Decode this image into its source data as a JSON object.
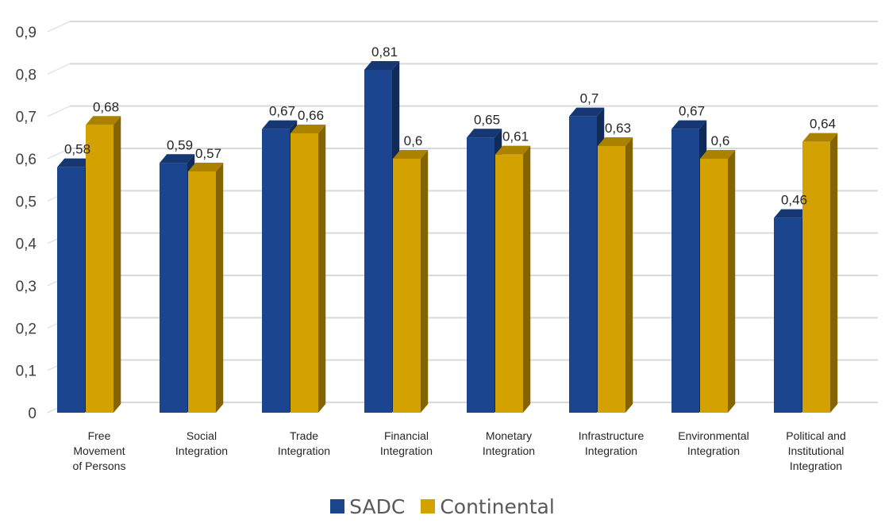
{
  "chart_data": {
    "type": "bar",
    "categories": [
      "Free Movement of Persons",
      "Social Integration",
      "Trade Integration",
      "Financial Integration",
      "Monetary Integration",
      "Infrastructure Integration",
      "Environmental Integration",
      "Political and Institutional Integration"
    ],
    "category_lines": [
      [
        "Free",
        "Movement",
        "of Persons"
      ],
      [
        "Social",
        "Integration"
      ],
      [
        "Trade",
        "Integration"
      ],
      [
        "Financial",
        "Integration"
      ],
      [
        "Monetary",
        "Integration"
      ],
      [
        "Infrastructure",
        "Integration"
      ],
      [
        "Environmental",
        "Integration"
      ],
      [
        "Political and",
        "Institutional",
        "Integration"
      ]
    ],
    "series": [
      {
        "name": "SADC",
        "color": "#1b458f",
        "values": [
          0.58,
          0.59,
          0.67,
          0.81,
          0.65,
          0.7,
          0.67,
          0.46
        ],
        "labels": [
          "0,58",
          "0,59",
          "0,67",
          "0,81",
          "0,65",
          "0,7",
          "0,67",
          "0,46"
        ]
      },
      {
        "name": "Continental",
        "color": "#d4a200",
        "values": [
          0.68,
          0.57,
          0.66,
          0.6,
          0.61,
          0.63,
          0.6,
          0.64
        ],
        "labels": [
          "0,68",
          "0,57",
          "0,66",
          "0,6",
          "0,61",
          "0,63",
          "0,6",
          "0,64"
        ]
      }
    ],
    "ylim": [
      0,
      0.9
    ],
    "yticks": [
      0,
      0.1,
      0.2,
      0.3,
      0.4,
      0.5,
      0.6,
      0.7,
      0.8,
      0.9
    ],
    "ytick_labels": [
      "0",
      "0,1",
      "0,2",
      "0,3",
      "0,4",
      "0,5",
      "0,6",
      "0,7",
      "0,8",
      "0,9"
    ],
    "grid": true,
    "three_d": true,
    "legend_position": "bottom-center",
    "title": "",
    "xlabel": "",
    "ylabel": ""
  }
}
